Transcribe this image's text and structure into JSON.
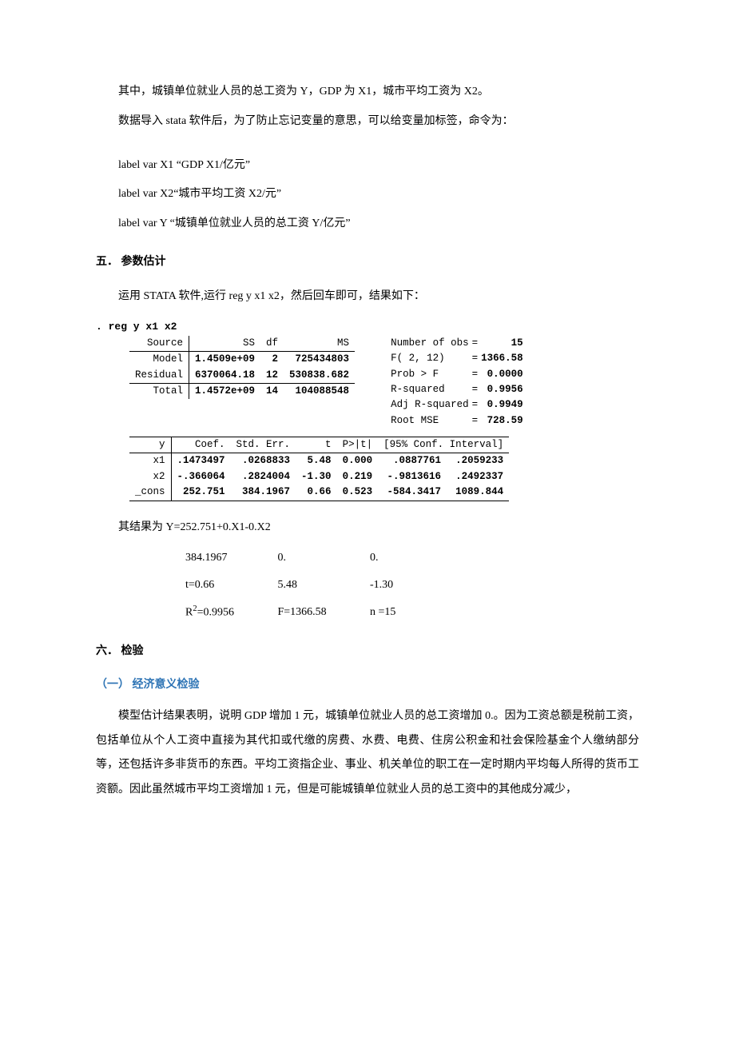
{
  "intro": {
    "p1": "其中，城镇单位就业人员的总工资为 Y，GDP 为 X1，城市平均工资为 X2。",
    "p2": "数据导入 stata 软件后，为了防止忘记变量的意思，可以给变量加标签，命令为：",
    "l1": "label var X1 “GDP X1/亿元”",
    "l2": "label var X2“城市平均工资 X2/元”",
    "l3": "label var Y “城镇单位就业人员的总工资 Y/亿元”"
  },
  "sec5": {
    "title": "五． 参数估计",
    "p1": "运用 STATA 软件,运行 reg y x1 x2，然后回车即可，结果如下："
  },
  "stata": {
    "cmd": ". reg y x1 x2",
    "anova": {
      "headers": {
        "source": "Source",
        "ss": "SS",
        "df": "df",
        "ms": "MS"
      },
      "model": {
        "label": "Model",
        "ss": "1.4509e+09",
        "df": "2",
        "ms": "725434803"
      },
      "residual": {
        "label": "Residual",
        "ss": "6370064.18",
        "df": "12",
        "ms": "530838.682"
      },
      "total": {
        "label": "Total",
        "ss": "1.4572e+09",
        "df": "14",
        "ms": "104088548"
      }
    },
    "fit": {
      "nobs_k": "Number of obs",
      "nobs_v": "15",
      "f_k": "F(  2,    12)",
      "f_v": "1366.58",
      "probf_k": "Prob > F",
      "probf_v": "0.0000",
      "r2_k": "R-squared",
      "r2_v": "0.9956",
      "adjr2_k": "Adj R-squared",
      "adjr2_v": "0.9949",
      "rmse_k": "Root MSE",
      "rmse_v": "728.59"
    },
    "coef": {
      "headers": {
        "y": "y",
        "coef": "Coef.",
        "se": "Std. Err.",
        "t": "t",
        "p": "P>|t|",
        "ci": "[95% Conf. Interval]"
      },
      "rows": [
        {
          "name": "x1",
          "coef": ".1473497",
          "se": ".0268833",
          "t": "5.48",
          "p": "0.000",
          "lo": ".0887761",
          "hi": ".2059233"
        },
        {
          "name": "x2",
          "coef": "-.366064",
          "se": ".2824004",
          "t": "-1.30",
          "p": "0.219",
          "lo": "-.9813616",
          "hi": ".2492337"
        },
        {
          "name": "_cons",
          "coef": "252.751",
          "se": "384.1967",
          "t": "0.66",
          "p": "0.523",
          "lo": "-584.3417",
          "hi": "1089.844"
        }
      ]
    }
  },
  "result": {
    "eq": "其结果为 Y=252.751+0.X1-0.X2",
    "row1_a": "384.1967",
    "row1_b": "0.",
    "row1_c": "0.",
    "row2_a": "t=0.66",
    "row2_b": "5.48",
    "row2_c": "-1.30",
    "row3_a_pre": "R",
    "row3_a_post": "=0.9956",
    "row3_b": "F=1366.58",
    "row3_c": "n =15"
  },
  "sec6": {
    "title": "六． 检验",
    "sub1": "（一） 经济意义检验",
    "p1": "模型估计结果表明，说明 GDP 增加 1 元，城镇单位就业人员的总工资增加 0.。因为工资总额是税前工资，包括单位从个人工资中直接为其代扣或代缴的房费、水费、电费、住房公积金和社会保险基金个人缴纳部分等，还包括许多非货币的东西。平均工资指企业、事业、机关单位的职工在一定时期内平均每人所得的货币工资额。因此虽然城市平均工资增加 1 元，但是可能城镇单位就业人员的总工资中的其他成分减少，"
  }
}
